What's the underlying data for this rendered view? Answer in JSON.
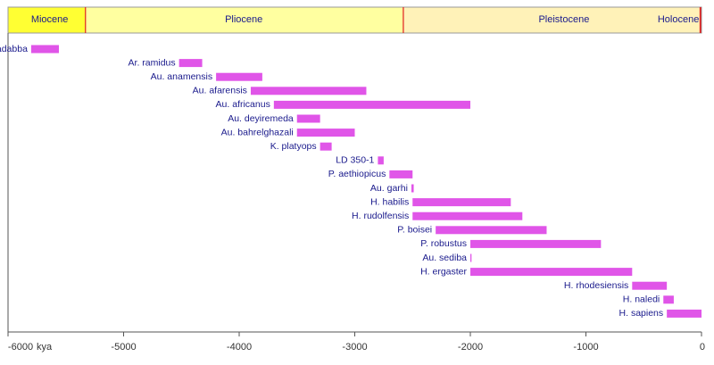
{
  "chart_data": {
    "type": "bar",
    "orientation": "horizontal-range",
    "unit_label": "kya",
    "xlim": [
      -6000,
      0
    ],
    "xticks": [
      -6000,
      -5000,
      -4000,
      -3000,
      -2000,
      -1000,
      0
    ],
    "xtick_labels": [
      "-6000",
      "-5000",
      "-4000",
      "-3000",
      "-2000",
      "-1000",
      "0"
    ],
    "grid": false,
    "bar_color": "#e055e8",
    "epochs": [
      {
        "name": "Miocene",
        "start": -6000,
        "end": -5330,
        "color": "#ffff33"
      },
      {
        "name": "Pliocene",
        "start": -5330,
        "end": -2580,
        "color": "#ffffa0"
      },
      {
        "name": "Pleistocene",
        "start": -2580,
        "end": -12,
        "color": "#fff2b8"
      },
      {
        "name": "Holocene",
        "start": -12,
        "end": 0,
        "color": "#fff2b8"
      }
    ],
    "epoch_labels": [
      {
        "text": "Miocene",
        "at": -5640
      },
      {
        "text": "Pliocene",
        "at": -3960
      },
      {
        "text": "Pleistocene",
        "at": -1190
      },
      {
        "text": "Holocene",
        "at": -200
      }
    ],
    "species": [
      {
        "name": "Ar. kadabba",
        "start": -5800,
        "end": -5560
      },
      {
        "name": "Ar. ramidus",
        "start": -4520,
        "end": -4320
      },
      {
        "name": "Au. anamensis",
        "start": -4200,
        "end": -3800
      },
      {
        "name": "Au. afarensis",
        "start": -3900,
        "end": -2900
      },
      {
        "name": "Au. africanus",
        "start": -3700,
        "end": -2000
      },
      {
        "name": "Au. deyiremeda",
        "start": -3500,
        "end": -3300
      },
      {
        "name": "Au. bahrelghazali",
        "start": -3500,
        "end": -3000
      },
      {
        "name": "K. platyops",
        "start": -3300,
        "end": -3200
      },
      {
        "name": "LD 350-1",
        "start": -2800,
        "end": -2750
      },
      {
        "name": "P. aethiopicus",
        "start": -2700,
        "end": -2500
      },
      {
        "name": "Au. garhi",
        "start": -2510,
        "end": -2490
      },
      {
        "name": "H. habilis",
        "start": -2500,
        "end": -1650
      },
      {
        "name": "H. rudolfensis",
        "start": -2500,
        "end": -1550
      },
      {
        "name": "P. boisei",
        "start": -2300,
        "end": -1340
      },
      {
        "name": "P. robustus",
        "start": -2000,
        "end": -870
      },
      {
        "name": "Au. sediba",
        "start": -2000,
        "end": -1990
      },
      {
        "name": "H. ergaster",
        "start": -2000,
        "end": -600
      },
      {
        "name": "H. rhodesiensis",
        "start": -600,
        "end": -300
      },
      {
        "name": "H. naledi",
        "start": -330,
        "end": -240
      },
      {
        "name": "H. sapiens",
        "start": -300,
        "end": 0
      }
    ]
  }
}
